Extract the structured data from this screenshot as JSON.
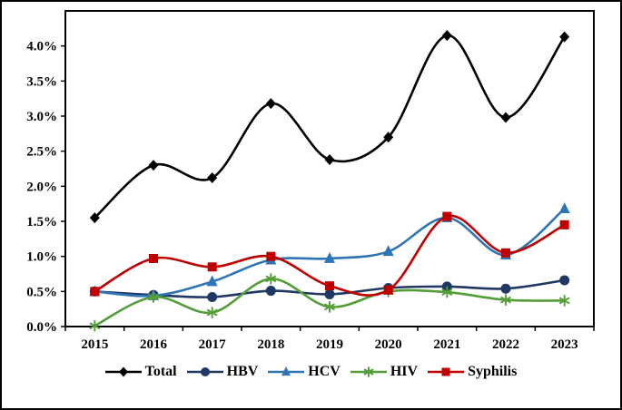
{
  "figure": {
    "background": "#ffffff",
    "border_color": "#000000"
  },
  "chart_data": {
    "type": "line",
    "title": "",
    "xlabel": "",
    "ylabel": "",
    "grid": false,
    "legend_position": "bottom",
    "smooth_lines": true,
    "categories": [
      "2015",
      "2016",
      "2017",
      "2018",
      "2019",
      "2020",
      "2021",
      "2022",
      "2023"
    ],
    "ylim": [
      0,
      4.5
    ],
    "ytick_step": 0.5,
    "ytick_labels": [
      "0.0%",
      "0.5%",
      "1.0%",
      "1.5%",
      "2.0%",
      "2.5%",
      "3.0%",
      "3.5%",
      "4.0%"
    ],
    "series": [
      {
        "name": "Total",
        "color": "#000000",
        "marker": "diamond",
        "values": [
          1.55,
          2.3,
          2.12,
          3.18,
          2.38,
          2.7,
          4.15,
          2.98,
          4.13
        ]
      },
      {
        "name": "HBV",
        "color": "#1F3864",
        "marker": "circle",
        "values": [
          0.5,
          0.45,
          0.42,
          0.51,
          0.46,
          0.55,
          0.57,
          0.54,
          0.66
        ]
      },
      {
        "name": "HCV",
        "color": "#2E75B6",
        "marker": "triangle",
        "values": [
          0.5,
          0.44,
          0.64,
          0.95,
          0.97,
          1.07,
          1.55,
          1.02,
          1.68
        ]
      },
      {
        "name": "HIV",
        "color": "#549E39",
        "marker": "star",
        "values": [
          0.01,
          0.42,
          0.2,
          0.68,
          0.28,
          0.5,
          0.49,
          0.38,
          0.37
        ]
      },
      {
        "name": "Syphilis",
        "color": "#C00000",
        "marker": "square",
        "values": [
          0.5,
          0.97,
          0.85,
          1.0,
          0.58,
          0.52,
          1.57,
          1.05,
          1.45
        ]
      }
    ]
  }
}
